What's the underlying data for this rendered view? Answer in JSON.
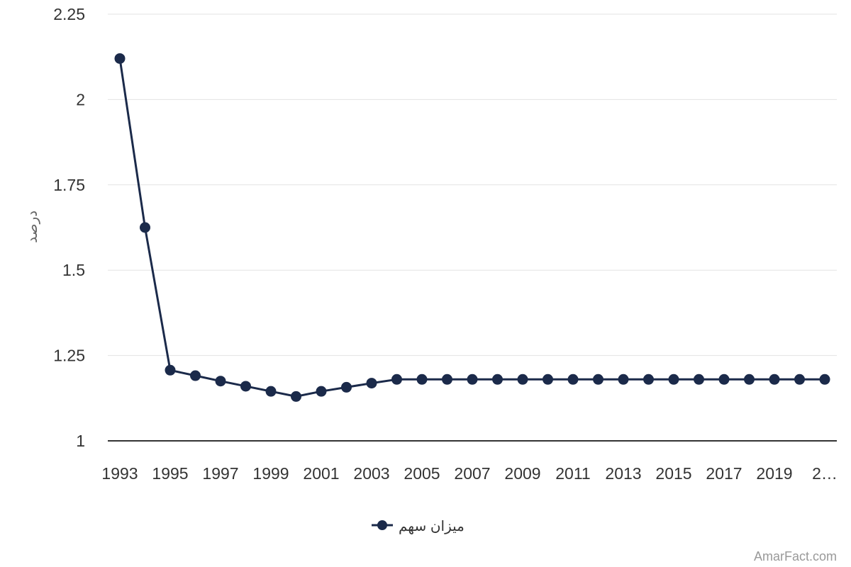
{
  "chart_data": {
    "type": "line",
    "ylabel": "درصد",
    "ylim": [
      1,
      2.25
    ],
    "yticks": [
      "2.25",
      "2",
      "1.75",
      "1.5",
      "1.25",
      "1"
    ],
    "ytick_values": [
      2.25,
      2,
      1.75,
      1.5,
      1.25,
      1
    ],
    "xtick_labels": [
      "1993",
      "1995",
      "1997",
      "1999",
      "2001",
      "2003",
      "2005",
      "2007",
      "2009",
      "2011",
      "2013",
      "2015",
      "2017",
      "2019",
      "2…"
    ],
    "x": [
      1993,
      1994,
      1995,
      1996,
      1997,
      1998,
      1999,
      2000,
      2001,
      2002,
      2003,
      2004,
      2005,
      2006,
      2007,
      2008,
      2009,
      2010,
      2011,
      2012,
      2013,
      2014,
      2015,
      2016,
      2017,
      2018,
      2019,
      2020,
      2021
    ],
    "series": [
      {
        "name": "میزان سهم",
        "values": [
          2.12,
          1.625,
          1.207,
          1.191,
          1.175,
          1.16,
          1.145,
          1.13,
          1.145,
          1.157,
          1.169,
          1.18,
          1.18,
          1.18,
          1.18,
          1.18,
          1.18,
          1.18,
          1.18,
          1.18,
          1.18,
          1.18,
          1.18,
          1.18,
          1.18,
          1.18,
          1.18,
          1.18,
          1.18
        ]
      }
    ],
    "grid": true,
    "legend_position": "bottom-center",
    "line_color": "#1b2a4a"
  },
  "credit": "AmarFact.com"
}
